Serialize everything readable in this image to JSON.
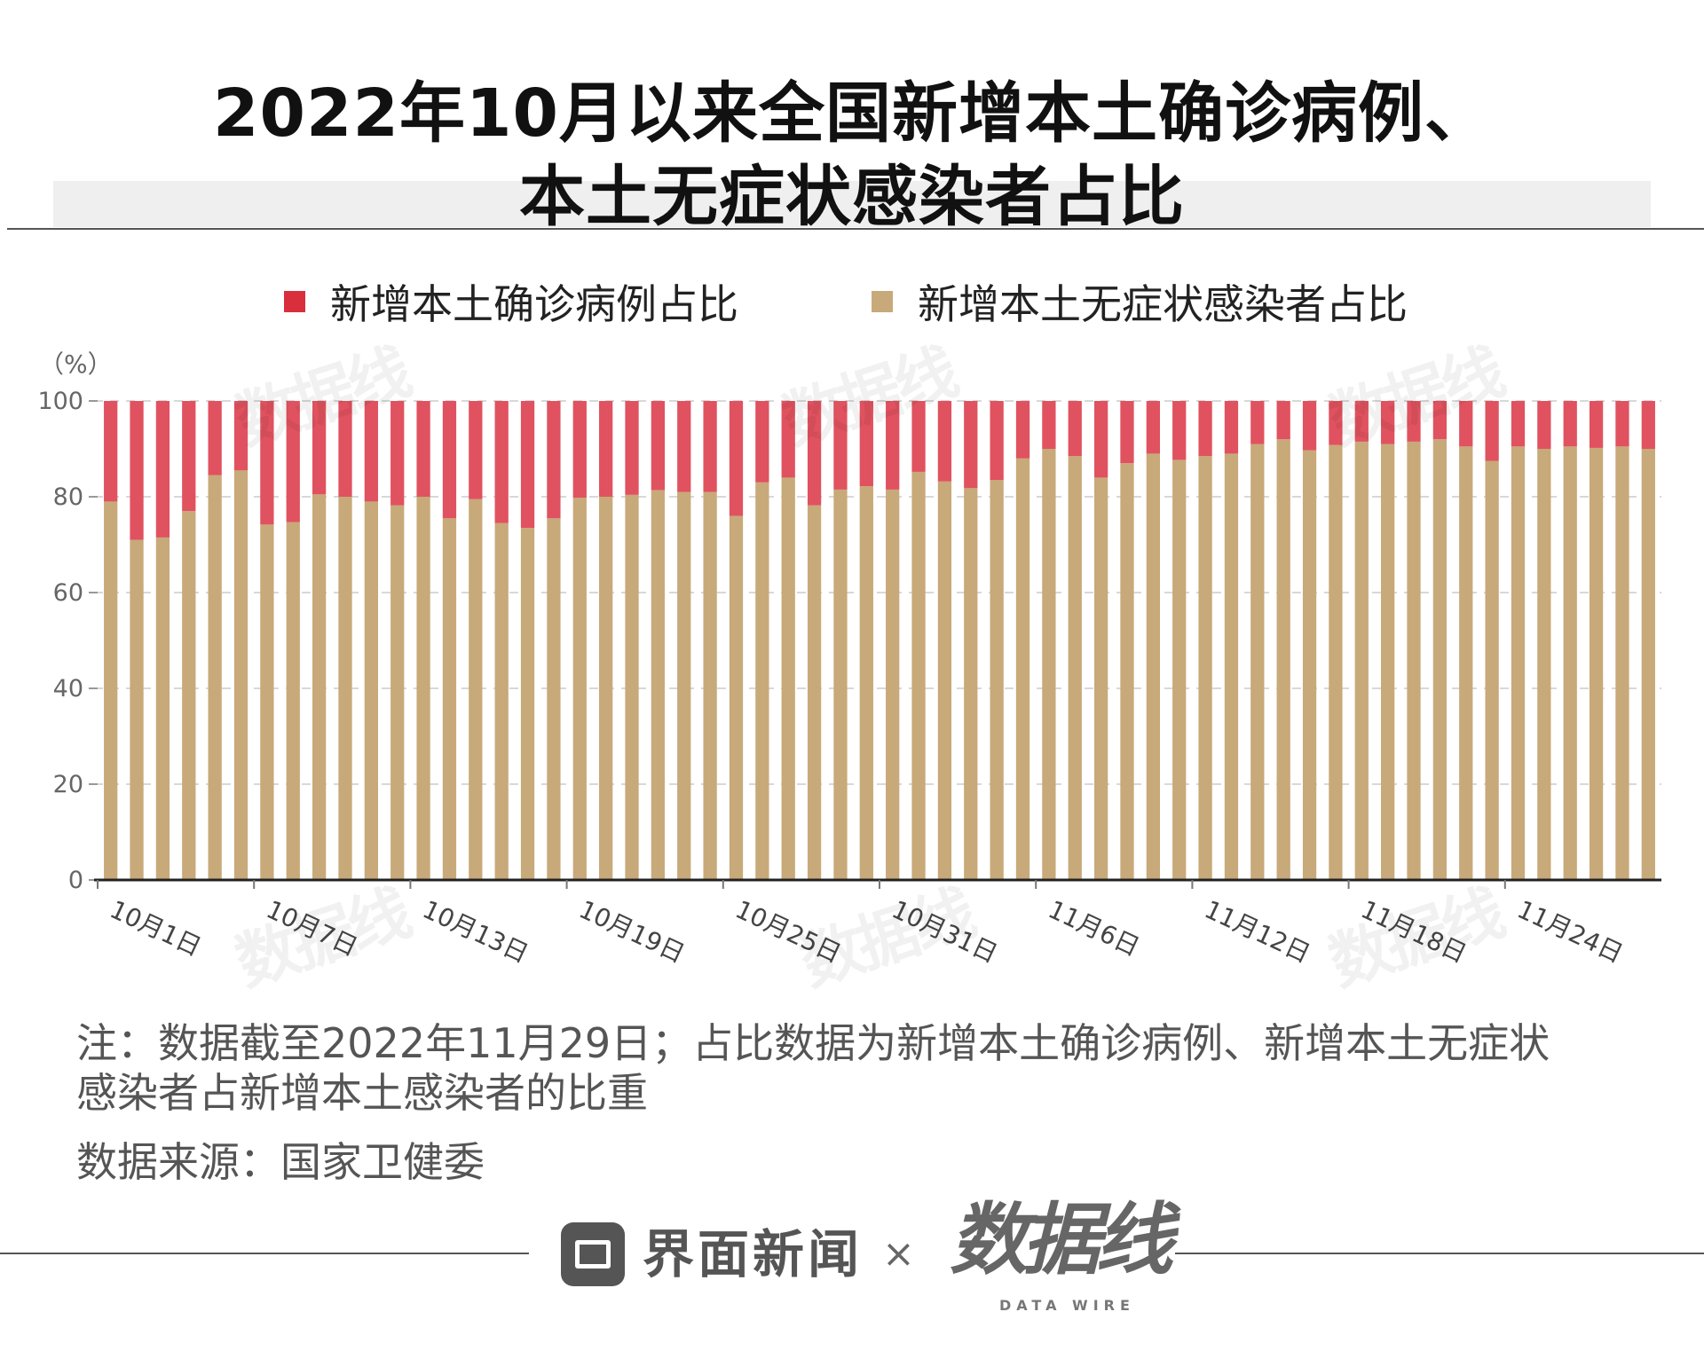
{
  "header": {
    "title_line1": "2022年10月以来全国新增本土确诊病例、",
    "title_line2": "本土无症状感染者占比"
  },
  "colors": {
    "confirmed": "#e0525f",
    "asymptomatic": "#c8a979",
    "legend_confirmed": "#d92f3c"
  },
  "chart_data": {
    "type": "bar",
    "stacked": true,
    "unit_label": "（%）",
    "ylim": [
      0,
      100
    ],
    "yticks": [
      0,
      20,
      40,
      60,
      80,
      100
    ],
    "grid": true,
    "legend_position": "top",
    "x_tick_labels": [
      {
        "index": 0,
        "label": "10月1日"
      },
      {
        "index": 6,
        "label": "10月7日"
      },
      {
        "index": 12,
        "label": "10月13日"
      },
      {
        "index": 18,
        "label": "10月19日"
      },
      {
        "index": 24,
        "label": "10月25日"
      },
      {
        "index": 30,
        "label": "10月31日"
      },
      {
        "index": 36,
        "label": "11月6日"
      },
      {
        "index": 42,
        "label": "11月12日"
      },
      {
        "index": 48,
        "label": "11月18日"
      },
      {
        "index": 54,
        "label": "11月24日"
      }
    ],
    "series": [
      {
        "name": "新增本土确诊病例占比",
        "color": "#e0525f",
        "values": [
          21,
          29,
          28.5,
          23,
          15.5,
          14.5,
          25.8,
          25.3,
          19.5,
          20,
          21,
          21.8,
          20,
          24.5,
          20.5,
          25.5,
          26.5,
          24.5,
          20.2,
          20,
          19.6,
          18.6,
          19,
          19,
          24,
          17,
          16,
          21.8,
          18.5,
          17.8,
          18.5,
          14.8,
          16.8,
          18.2,
          16.5,
          12,
          10,
          11.5,
          16,
          13,
          11,
          12.3,
          11.5,
          11,
          9,
          8,
          10.3,
          9.2,
          8.5,
          9,
          8.5,
          8,
          9.5,
          12.5,
          9.5,
          10,
          9.5,
          9.8,
          9.5,
          10
        ]
      },
      {
        "name": "新增本土无症状感染者占比",
        "color": "#c8a979",
        "values": [
          79,
          71,
          71.5,
          77,
          84.5,
          85.5,
          74.2,
          74.7,
          80.5,
          80,
          79,
          78.2,
          80,
          75.5,
          79.5,
          74.5,
          73.5,
          75.5,
          79.8,
          80,
          80.4,
          81.4,
          81,
          81,
          76,
          83,
          84,
          78.2,
          81.5,
          82.2,
          81.5,
          85.2,
          83.2,
          81.8,
          83.5,
          88,
          90,
          88.5,
          84,
          87,
          89,
          87.7,
          88.5,
          89,
          91,
          92,
          89.7,
          90.8,
          91.5,
          91,
          91.5,
          92,
          90.5,
          87.5,
          90.5,
          90,
          90.5,
          90.2,
          90.5,
          90
        ]
      }
    ]
  },
  "notes": {
    "note": "注：数据截至2022年11月29日；占比数据为新增本土确诊病例、新增本土无症状感染者占新增本土感染者的比重",
    "source": "数据来源：国家卫健委"
  },
  "footer": {
    "brand_jiemian": "界面新闻",
    "times": "×",
    "brand_datawire": "数据线",
    "brand_datawire_en": "DATA WIRE"
  },
  "watermark": {
    "text": "数据线"
  }
}
